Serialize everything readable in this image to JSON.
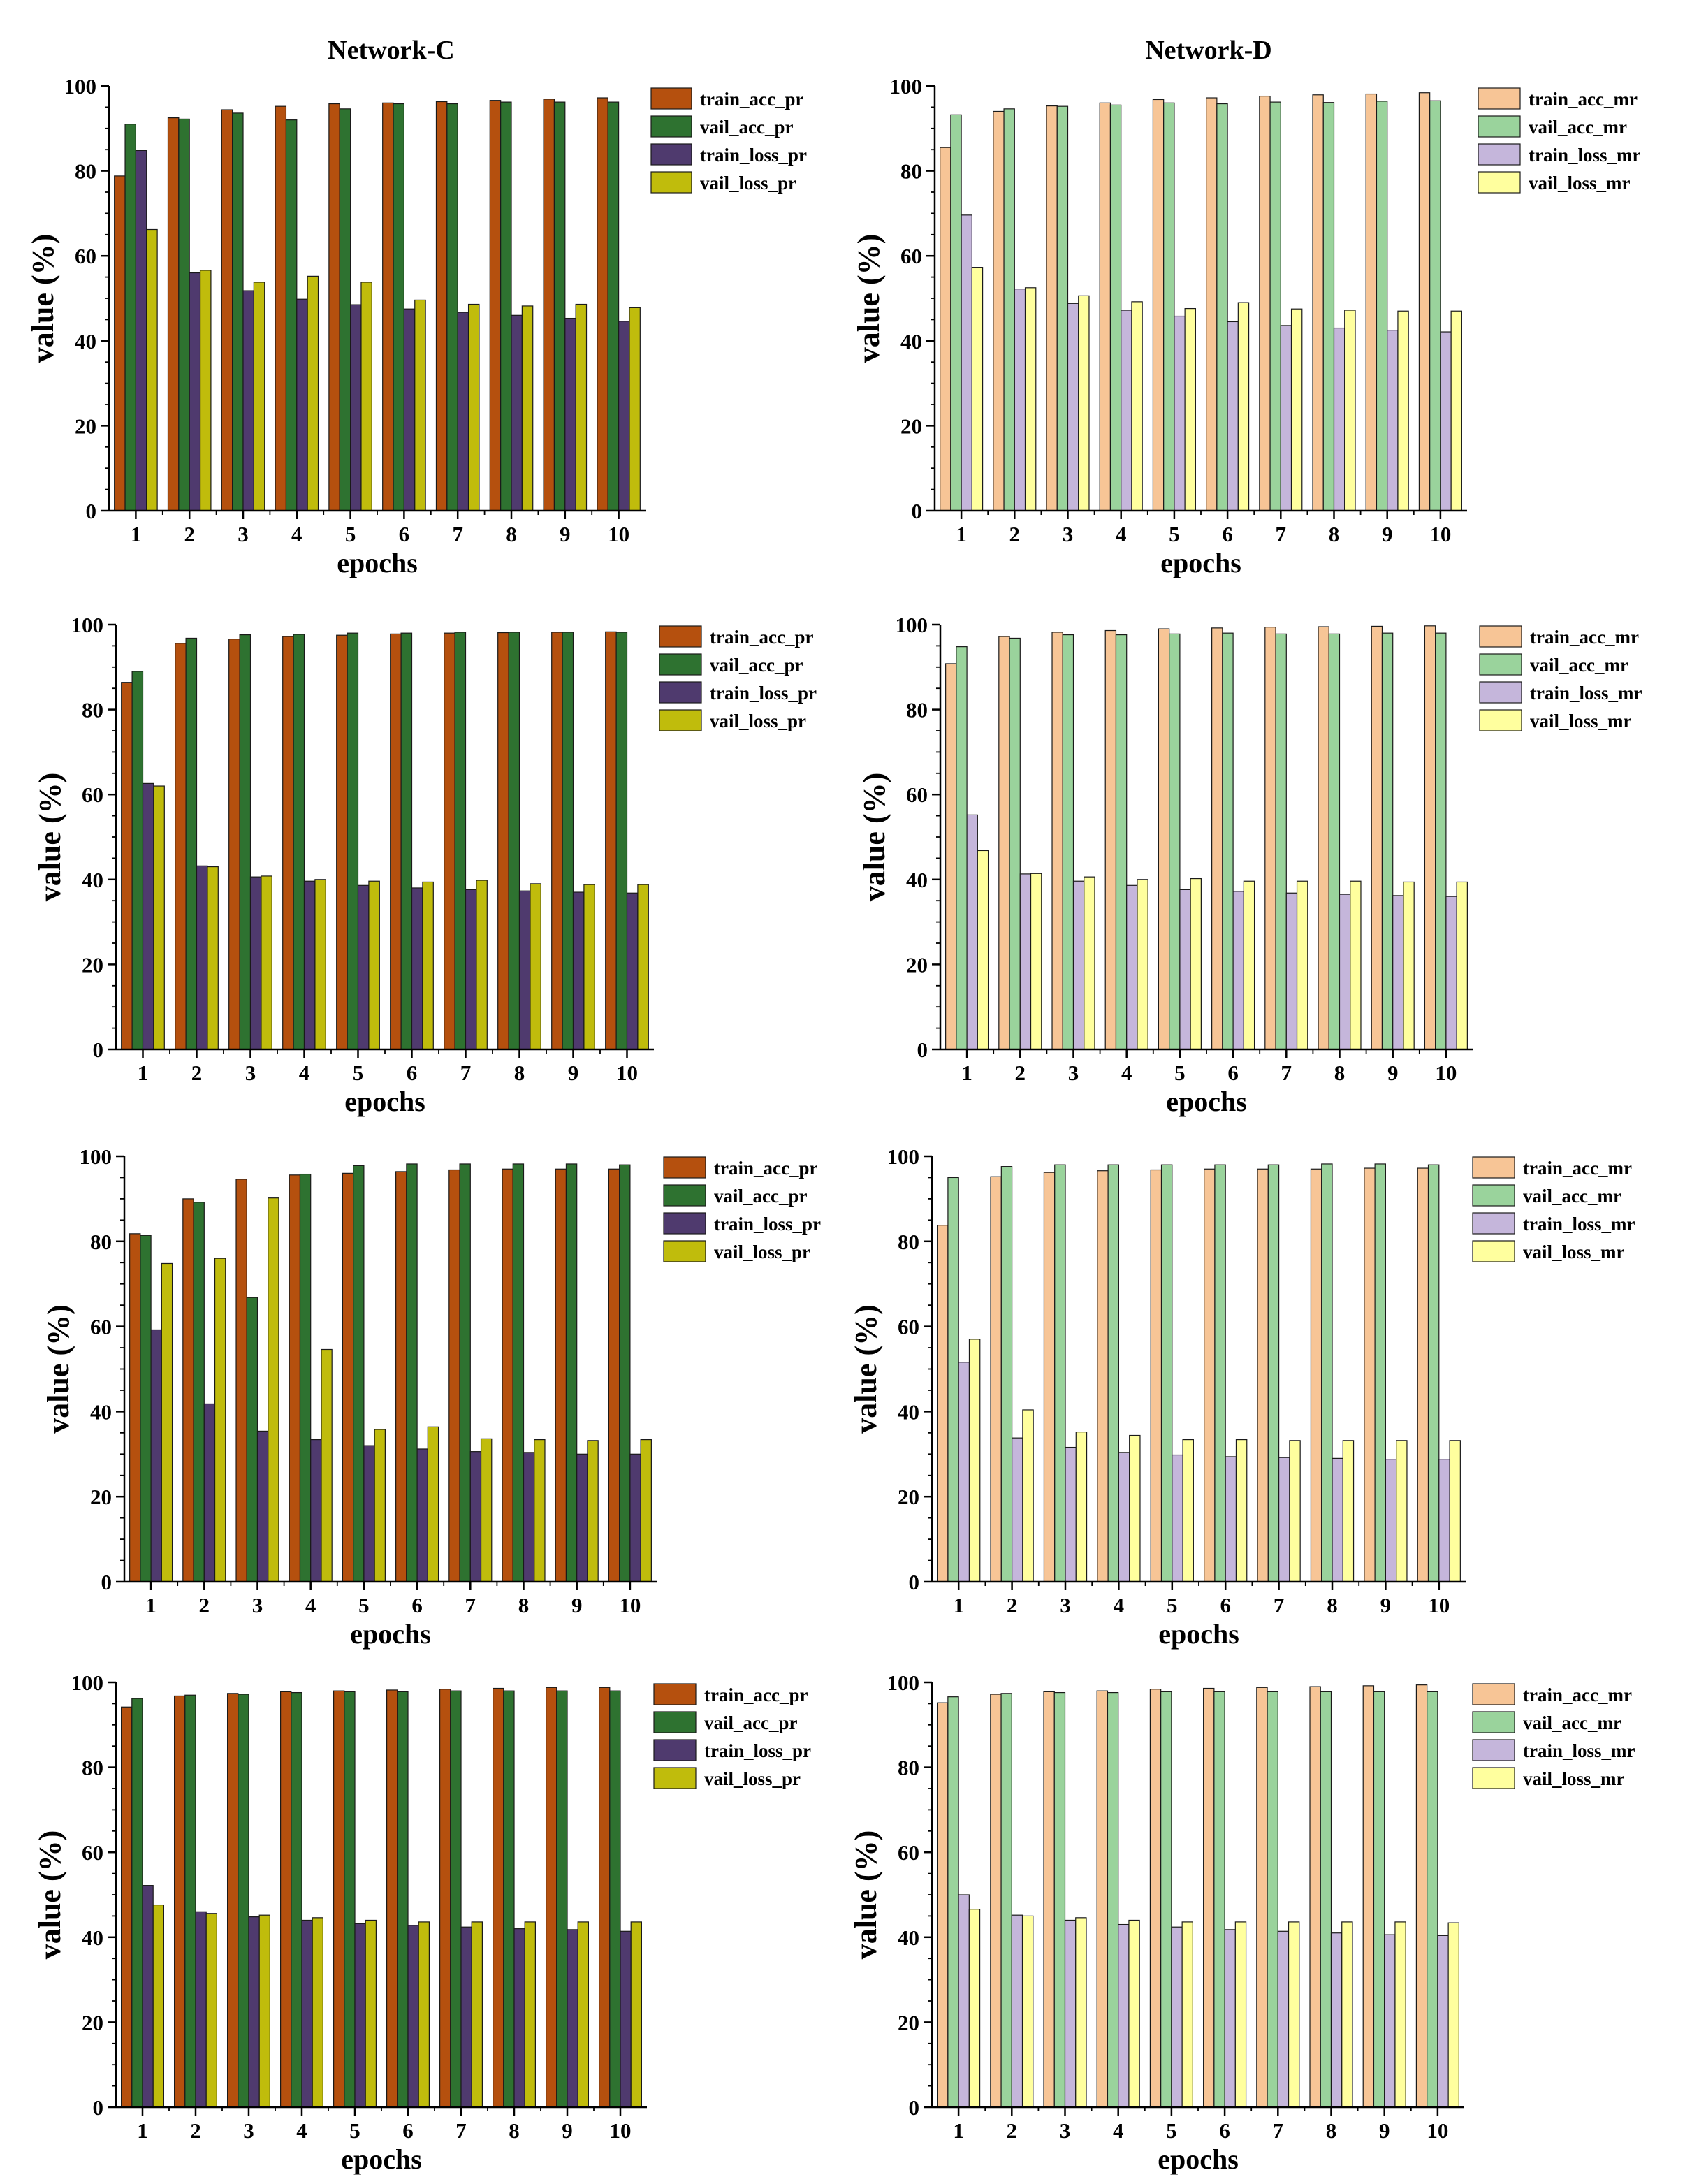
{
  "figure": {
    "column_titles": [
      "Network-C",
      "Network-D"
    ],
    "colors": {
      "pr": [
        "#B5500E",
        "#2E7230",
        "#4F3A6E",
        "#C0BC0C"
      ],
      "mr": [
        "#F7C596",
        "#9AD39C",
        "#C5B6DB",
        "#FFFF9E"
      ]
    }
  },
  "chart_data": [
    {
      "type": "bar",
      "title": "Network-C",
      "xlabel": "epochs",
      "ylabel": "value (%)",
      "ylim": [
        0,
        100
      ],
      "yticks": [
        0,
        20,
        40,
        60,
        80,
        100
      ],
      "palette": "pr",
      "legend_position": "top-right",
      "categories": [
        "1",
        "2",
        "3",
        "4",
        "5",
        "6",
        "7",
        "8",
        "9",
        "10"
      ],
      "series": [
        {
          "name": "train_acc_pr",
          "values": [
            78.8,
            92.5,
            94.4,
            95.2,
            95.8,
            96.0,
            96.3,
            96.6,
            96.9,
            97.2
          ]
        },
        {
          "name": "vail_acc_pr",
          "values": [
            91.0,
            92.2,
            93.6,
            92.0,
            94.6,
            95.8,
            95.8,
            96.2,
            96.2,
            96.2
          ]
        },
        {
          "name": "train_loss_pr",
          "values": [
            84.8,
            56.0,
            51.8,
            49.8,
            48.5,
            47.5,
            46.7,
            46.0,
            45.3,
            44.6
          ]
        },
        {
          "name": "vail_loss_pr",
          "values": [
            66.2,
            56.6,
            53.8,
            55.2,
            53.8,
            49.6,
            48.6,
            48.2,
            48.6,
            47.8
          ]
        }
      ]
    },
    {
      "type": "bar",
      "title": "Network-D",
      "xlabel": "epochs",
      "ylabel": "value (%)",
      "ylim": [
        0,
        100
      ],
      "yticks": [
        0,
        20,
        40,
        60,
        80,
        100
      ],
      "palette": "mr",
      "legend_position": "top-right",
      "categories": [
        "1",
        "2",
        "3",
        "4",
        "5",
        "6",
        "7",
        "8",
        "9",
        "10"
      ],
      "series": [
        {
          "name": "train_acc_mr",
          "values": [
            85.5,
            94.0,
            95.3,
            96.0,
            96.8,
            97.2,
            97.6,
            97.9,
            98.1,
            98.4
          ]
        },
        {
          "name": "vail_acc_mr",
          "values": [
            93.2,
            94.6,
            95.2,
            95.5,
            96.0,
            95.8,
            96.2,
            96.1,
            96.4,
            96.5
          ]
        },
        {
          "name": "train_loss_mr",
          "values": [
            69.6,
            52.2,
            48.8,
            47.2,
            45.8,
            44.5,
            43.6,
            43.0,
            42.5,
            42.1
          ]
        },
        {
          "name": "vail_loss_mr",
          "values": [
            57.3,
            52.5,
            50.6,
            49.2,
            47.6,
            49.0,
            47.5,
            47.2,
            47.0,
            47.0
          ]
        }
      ]
    },
    {
      "type": "bar",
      "title": "",
      "xlabel": "epochs",
      "ylabel": "value (%)",
      "ylim": [
        0,
        100
      ],
      "yticks": [
        0,
        20,
        40,
        60,
        80,
        100
      ],
      "palette": "pr",
      "legend_position": "top-right",
      "categories": [
        "1",
        "2",
        "3",
        "4",
        "5",
        "6",
        "7",
        "8",
        "9",
        "10"
      ],
      "series": [
        {
          "name": "train_acc_pr",
          "values": [
            86.4,
            95.6,
            96.6,
            97.2,
            97.5,
            97.8,
            98.0,
            98.1,
            98.2,
            98.3
          ]
        },
        {
          "name": "vail_acc_pr",
          "values": [
            89.0,
            96.8,
            97.6,
            97.7,
            98.0,
            98.0,
            98.2,
            98.2,
            98.2,
            98.2
          ]
        },
        {
          "name": "train_loss_pr",
          "values": [
            62.6,
            43.2,
            40.6,
            39.6,
            38.6,
            38.0,
            37.6,
            37.3,
            37.0,
            36.8
          ]
        },
        {
          "name": "vail_loss_pr",
          "values": [
            62.0,
            43.0,
            40.8,
            40.0,
            39.6,
            39.4,
            39.8,
            39.0,
            38.8,
            38.8
          ]
        }
      ]
    },
    {
      "type": "bar",
      "title": "",
      "xlabel": "epochs",
      "ylabel": "value (%)",
      "ylim": [
        0,
        100
      ],
      "yticks": [
        0,
        20,
        40,
        60,
        80,
        100
      ],
      "palette": "mr",
      "legend_position": "top-right",
      "categories": [
        "1",
        "2",
        "3",
        "4",
        "5",
        "6",
        "7",
        "8",
        "9",
        "10"
      ],
      "series": [
        {
          "name": "train_acc_mr",
          "values": [
            90.8,
            97.2,
            98.2,
            98.6,
            99.0,
            99.2,
            99.4,
            99.5,
            99.6,
            99.7
          ]
        },
        {
          "name": "vail_acc_mr",
          "values": [
            94.8,
            96.8,
            97.6,
            97.6,
            97.8,
            98.0,
            97.8,
            97.8,
            98.0,
            98.0
          ]
        },
        {
          "name": "train_loss_mr",
          "values": [
            55.2,
            41.3,
            39.6,
            38.6,
            37.6,
            37.2,
            36.8,
            36.5,
            36.2,
            36.0
          ]
        },
        {
          "name": "vail_loss_mr",
          "values": [
            46.8,
            41.4,
            40.6,
            40.0,
            40.2,
            39.6,
            39.6,
            39.6,
            39.4,
            39.4
          ]
        }
      ]
    },
    {
      "type": "bar",
      "title": "",
      "xlabel": "epochs",
      "ylabel": "value (%)",
      "ylim": [
        0,
        100
      ],
      "yticks": [
        0,
        20,
        40,
        60,
        80,
        100
      ],
      "palette": "pr",
      "legend_position": "top-right",
      "categories": [
        "1",
        "2",
        "3",
        "4",
        "5",
        "6",
        "7",
        "8",
        "9",
        "10"
      ],
      "series": [
        {
          "name": "train_acc_pr",
          "values": [
            81.8,
            90.0,
            94.6,
            95.6,
            96.0,
            96.4,
            96.8,
            97.0,
            97.0,
            97.0
          ]
        },
        {
          "name": "vail_acc_pr",
          "values": [
            81.4,
            89.2,
            66.8,
            95.8,
            97.8,
            98.2,
            98.2,
            98.2,
            98.2,
            98.0
          ]
        },
        {
          "name": "train_loss_pr",
          "values": [
            59.2,
            41.8,
            35.4,
            33.4,
            32.0,
            31.2,
            30.6,
            30.4,
            30.0,
            30.0
          ]
        },
        {
          "name": "vail_loss_pr",
          "values": [
            74.8,
            76.0,
            90.2,
            54.6,
            35.8,
            36.4,
            33.6,
            33.4,
            33.2,
            33.4
          ]
        }
      ]
    },
    {
      "type": "bar",
      "title": "",
      "xlabel": "epochs",
      "ylabel": "value (%)",
      "ylim": [
        0,
        100
      ],
      "yticks": [
        0,
        20,
        40,
        60,
        80,
        100
      ],
      "palette": "mr",
      "legend_position": "top-right",
      "categories": [
        "1",
        "2",
        "3",
        "4",
        "5",
        "6",
        "7",
        "8",
        "9",
        "10"
      ],
      "series": [
        {
          "name": "train_acc_mr",
          "values": [
            83.8,
            95.2,
            96.2,
            96.6,
            96.8,
            97.0,
            97.0,
            97.0,
            97.2,
            97.2
          ]
        },
        {
          "name": "vail_acc_mr",
          "values": [
            95.0,
            97.6,
            98.0,
            98.0,
            98.0,
            98.0,
            98.0,
            98.2,
            98.2,
            98.0
          ]
        },
        {
          "name": "train_loss_mr",
          "values": [
            51.6,
            33.8,
            31.6,
            30.4,
            29.8,
            29.4,
            29.2,
            29.0,
            28.8,
            28.8
          ]
        },
        {
          "name": "vail_loss_mr",
          "values": [
            57.0,
            40.4,
            35.2,
            34.4,
            33.4,
            33.4,
            33.2,
            33.2,
            33.2,
            33.2
          ]
        }
      ]
    },
    {
      "type": "bar",
      "title": "",
      "xlabel": "epochs",
      "ylabel": "value (%)",
      "ylim": [
        0,
        100
      ],
      "yticks": [
        0,
        20,
        40,
        60,
        80,
        100
      ],
      "palette": "pr",
      "legend_position": "top-right",
      "categories": [
        "1",
        "2",
        "3",
        "4",
        "5",
        "6",
        "7",
        "8",
        "9",
        "10"
      ],
      "series": [
        {
          "name": "train_acc_pr",
          "values": [
            94.2,
            96.8,
            97.4,
            97.8,
            98.0,
            98.2,
            98.4,
            98.6,
            98.8,
            98.8
          ]
        },
        {
          "name": "vail_acc_pr",
          "values": [
            96.2,
            97.0,
            97.2,
            97.6,
            97.8,
            97.8,
            98.0,
            98.0,
            98.0,
            98.0
          ]
        },
        {
          "name": "train_loss_pr",
          "values": [
            52.2,
            46.0,
            44.8,
            44.0,
            43.2,
            42.8,
            42.4,
            42.0,
            41.8,
            41.4
          ]
        },
        {
          "name": "vail_loss_pr",
          "values": [
            47.6,
            45.6,
            45.2,
            44.6,
            44.0,
            43.6,
            43.6,
            43.6,
            43.6,
            43.6
          ]
        }
      ]
    },
    {
      "type": "bar",
      "title": "",
      "xlabel": "epochs",
      "ylabel": "value (%)",
      "ylim": [
        0,
        100
      ],
      "yticks": [
        0,
        20,
        40,
        60,
        80,
        100
      ],
      "palette": "mr",
      "legend_position": "top-right",
      "categories": [
        "1",
        "2",
        "3",
        "4",
        "5",
        "6",
        "7",
        "8",
        "9",
        "10"
      ],
      "series": [
        {
          "name": "train_acc_mr",
          "values": [
            95.2,
            97.2,
            97.8,
            98.0,
            98.4,
            98.6,
            98.8,
            99.0,
            99.2,
            99.4
          ]
        },
        {
          "name": "vail_acc_mr",
          "values": [
            96.6,
            97.4,
            97.6,
            97.6,
            97.8,
            97.8,
            97.8,
            97.8,
            97.8,
            97.8
          ]
        },
        {
          "name": "train_loss_mr",
          "values": [
            50.0,
            45.2,
            44.0,
            43.0,
            42.4,
            41.8,
            41.4,
            41.0,
            40.6,
            40.4
          ]
        },
        {
          "name": "vail_loss_mr",
          "values": [
            46.6,
            45.0,
            44.6,
            44.0,
            43.6,
            43.6,
            43.6,
            43.6,
            43.6,
            43.4
          ]
        }
      ]
    }
  ]
}
